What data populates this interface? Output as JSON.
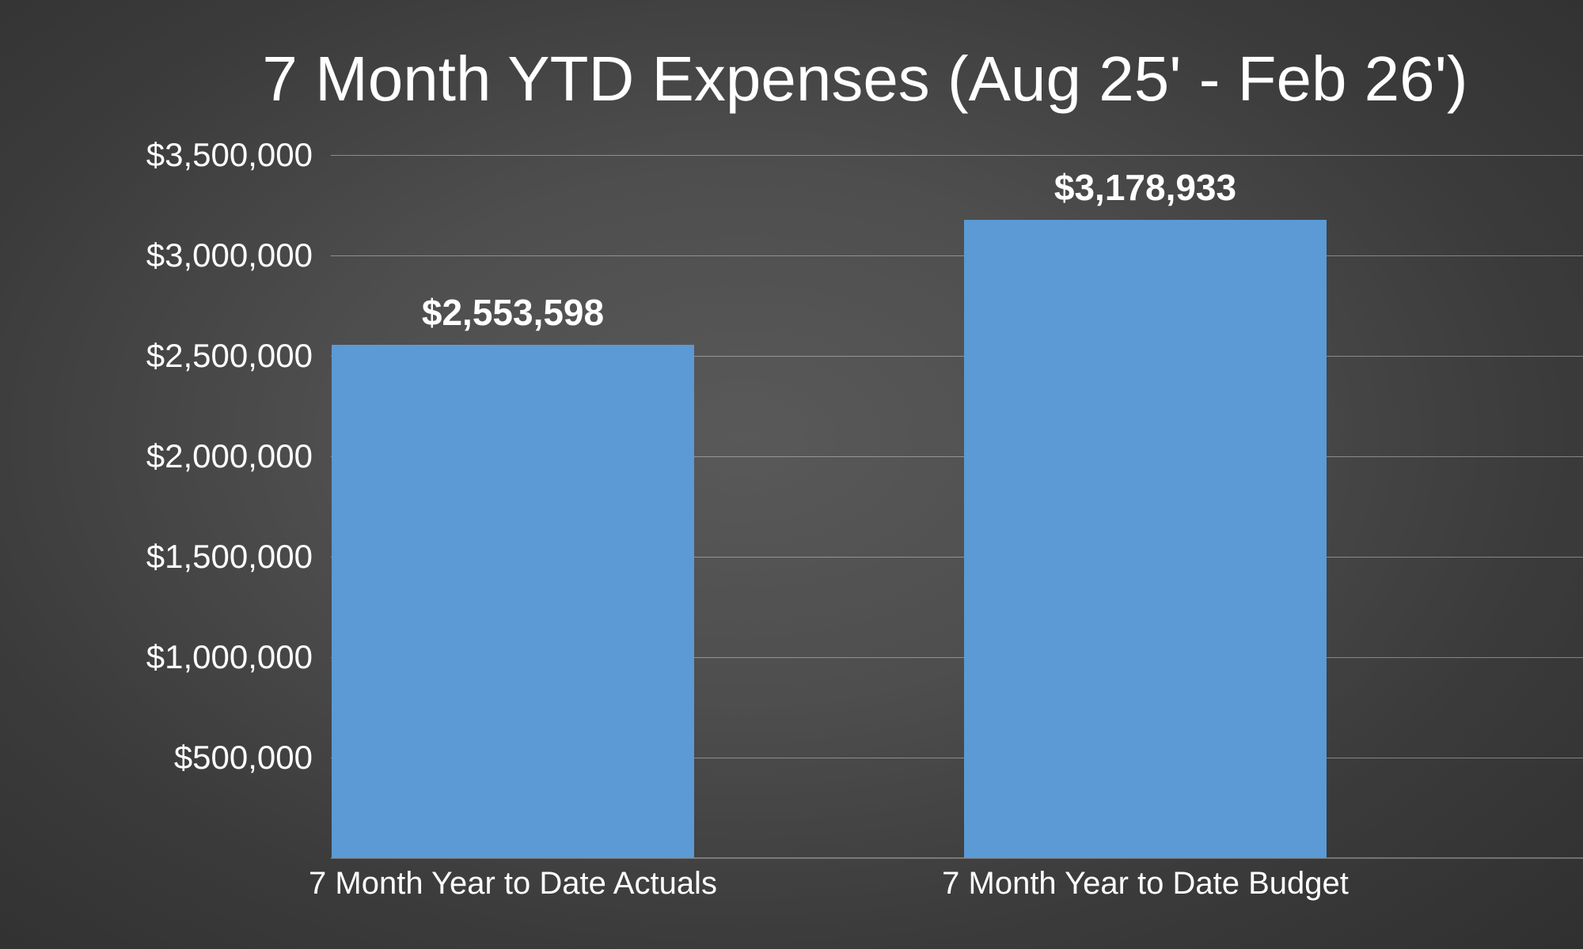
{
  "chart_data": {
    "type": "bar",
    "title": "7 Month YTD Expenses (Aug 25' - Feb 26')",
    "categories": [
      "7 Month Year to Date Actuals",
      "7 Month Year to Date Budget"
    ],
    "values": [
      2553598,
      3178933
    ],
    "value_labels": [
      "$2,553,598",
      "$3,178,933"
    ],
    "y_ticks": [
      "$3,500,000",
      "$3,000,000",
      "$2,500,000",
      "$2,000,000",
      "$1,500,000",
      "$1,000,000",
      "$500,000"
    ],
    "y_tick_values": [
      3500000,
      3000000,
      2500000,
      2000000,
      1500000,
      1000000,
      500000
    ],
    "ylim": [
      0,
      3500000
    ],
    "xlabel": "",
    "ylabel": "",
    "grid": true,
    "legend": "none",
    "bar_color": "#5B9AD5",
    "text_color": "#FFFFFF",
    "gridline_color": "rgba(255,255,255,0.38)",
    "background_center_color": "#595959",
    "background_edge_color": "#2F2F2F"
  }
}
